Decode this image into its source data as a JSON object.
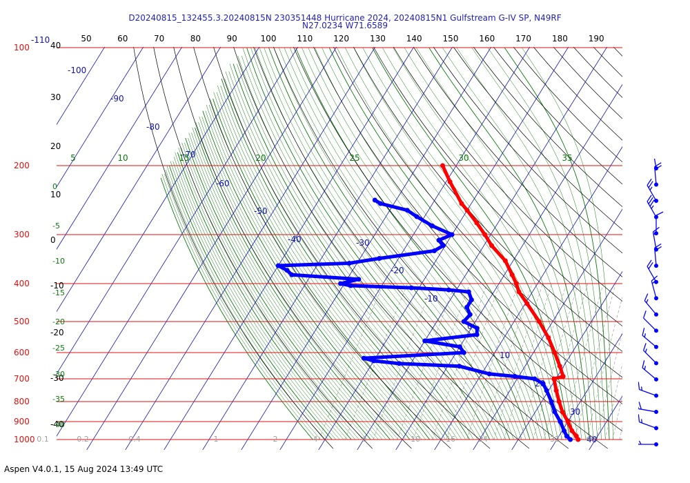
{
  "header": {
    "line1": "D20240815_132455.3.20240815N 230351448 Hurricane 2024, 20240815N1 Gulfstream G-IV SP, N49RF",
    "line2": "N27.0234 W71.6589"
  },
  "footer": {
    "text": "Aspen V4.0.1, 15 Aug 2024  13:49 UTC"
  },
  "colors": {
    "isobar": "#e01010",
    "isotherm": "#1010c0",
    "dry_adiabat": "#000000",
    "moist_adiabat": "#0a7a0a",
    "mixing_ratio": "#a0a0a0",
    "temperature": "#ff0000",
    "dewpoint": "#0000ff",
    "tick_text": "#000000",
    "title": "#1f1fbf"
  },
  "chart_data": {
    "type": "skew-t",
    "title": "",
    "pressure_levels": [
      100,
      200,
      300,
      400,
      500,
      600,
      700,
      800,
      900,
      1000
    ],
    "pressure_labels": [
      "100",
      "200",
      "300",
      "400",
      "500",
      "600",
      "700",
      "800",
      "900",
      "1000"
    ],
    "top_axis_values": [
      50,
      60,
      70,
      80,
      90,
      100,
      110,
      120,
      130,
      140,
      150,
      160,
      170,
      180,
      190
    ],
    "top_axis_labels": [
      "50",
      "60",
      "70",
      "80",
      "90",
      "100",
      "110",
      "120",
      "130",
      "140",
      "150",
      "160",
      "170",
      "180",
      "190"
    ],
    "isotherm_labels": [
      "-110",
      "-100",
      "-90",
      "-80",
      "-70",
      "-60",
      "-50",
      "-40",
      "-30",
      "-20",
      "-10",
      "0",
      "10",
      "20",
      "30",
      "40"
    ],
    "theta_left_labels": [
      "40",
      "30",
      "20",
      "10",
      "0",
      "-10",
      "-20",
      "-30",
      "-40"
    ],
    "moist_labels_left": [
      "0",
      "-5",
      "-10",
      "-15",
      "-20",
      "-25",
      "-30",
      "-35",
      "-40"
    ],
    "moist_labels_top": [
      "5",
      "10",
      "15",
      "20",
      "25",
      "30",
      "35"
    ],
    "mixing_ratio_labels": [
      "0.1",
      "0.2",
      "0.4",
      "1",
      "2",
      "4",
      "6",
      "10",
      "16",
      "24",
      "32",
      "40"
    ],
    "series": [
      {
        "kind": "temperature",
        "points": [
          [
            1000,
            25.5
          ],
          [
            980,
            24.5
          ],
          [
            950,
            22.5
          ],
          [
            900,
            20.0
          ],
          [
            850,
            17.0
          ],
          [
            800,
            14.5
          ],
          [
            750,
            12.0
          ],
          [
            700,
            9.5
          ],
          [
            690,
            11.5
          ],
          [
            650,
            9.0
          ],
          [
            600,
            5.5
          ],
          [
            550,
            1.5
          ],
          [
            500,
            -3.5
          ],
          [
            450,
            -9.5
          ],
          [
            420,
            -13.5
          ],
          [
            400,
            -15.5
          ],
          [
            380,
            -18.0
          ],
          [
            350,
            -22.0
          ],
          [
            320,
            -28.0
          ],
          [
            300,
            -31.5
          ],
          [
            280,
            -35.5
          ],
          [
            260,
            -40.0
          ],
          [
            250,
            -42.5
          ],
          [
            220,
            -49.0
          ],
          [
            200,
            -53.5
          ]
        ]
      },
      {
        "kind": "dewpoint",
        "points": [
          [
            1000,
            23.5
          ],
          [
            980,
            22.0
          ],
          [
            950,
            20.5
          ],
          [
            900,
            18.0
          ],
          [
            850,
            15.0
          ],
          [
            800,
            12.5
          ],
          [
            750,
            9.5
          ],
          [
            720,
            7.5
          ],
          [
            700,
            4.5
          ],
          [
            690,
            -1.0
          ],
          [
            680,
            -8.0
          ],
          [
            650,
            -17.0
          ],
          [
            640,
            -33.0
          ],
          [
            630,
            -40.0
          ],
          [
            620,
            -43.0
          ],
          [
            600,
            -18.0
          ],
          [
            580,
            -20.0
          ],
          [
            560,
            -30.0
          ],
          [
            540,
            -17.5
          ],
          [
            520,
            -18.5
          ],
          [
            500,
            -23.0
          ],
          [
            480,
            -22.5
          ],
          [
            460,
            -24.5
          ],
          [
            440,
            -24.5
          ],
          [
            420,
            -26.5
          ],
          [
            415,
            -32.0
          ],
          [
            410,
            -42.0
          ],
          [
            405,
            -58.0
          ],
          [
            400,
            -61.0
          ],
          [
            390,
            -57.0
          ],
          [
            380,
            -75.0
          ],
          [
            370,
            -77.0
          ],
          [
            360,
            -80.0
          ],
          [
            355,
            -62.0
          ],
          [
            345,
            -55.0
          ],
          [
            330,
            -42.0
          ],
          [
            320,
            -40.5
          ],
          [
            310,
            -42.5
          ],
          [
            300,
            -40.0
          ],
          [
            285,
            -46.5
          ],
          [
            270,
            -52.0
          ],
          [
            260,
            -55.5
          ],
          [
            250,
            -63.5
          ],
          [
            245,
            -65.5
          ]
        ]
      }
    ],
    "wind_barbs": [
      {
        "dir": 170,
        "speed": 15
      },
      {
        "dir": 175,
        "speed": 20
      },
      {
        "dir": 150,
        "speed": 25
      },
      {
        "dir": 150,
        "speed": 35
      },
      {
        "dir": 180,
        "speed": 10
      },
      {
        "dir": 170,
        "speed": 15
      },
      {
        "dir": 175,
        "speed": 20
      },
      {
        "dir": 150,
        "speed": 20
      },
      {
        "dir": 165,
        "speed": 15
      },
      {
        "dir": 140,
        "speed": 15
      },
      {
        "dir": 135,
        "speed": 10
      },
      {
        "dir": 130,
        "speed": 15
      },
      {
        "dir": 135,
        "speed": 15
      },
      {
        "dir": 130,
        "speed": 15
      },
      {
        "dir": 110,
        "speed": 15
      },
      {
        "dir": 100,
        "speed": 20
      },
      {
        "dir": 110,
        "speed": 15
      },
      {
        "dir": 90,
        "speed": 15
      }
    ]
  }
}
